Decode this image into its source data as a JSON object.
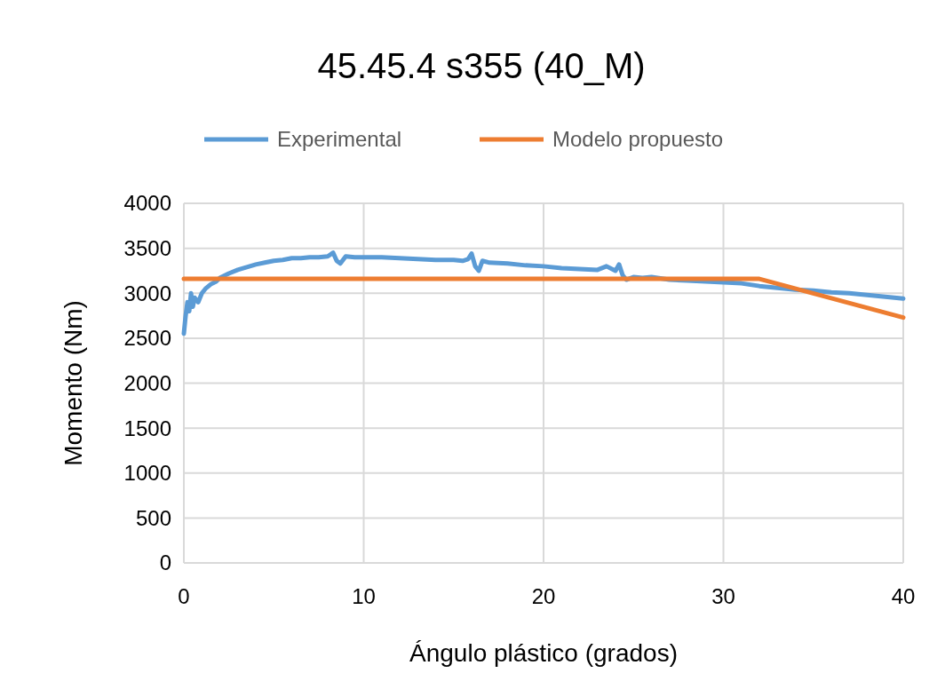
{
  "chart_data": {
    "type": "line",
    "title": "45.45.4 s355 (40_M)",
    "xlabel": "Ángulo plástico (grados)",
    "ylabel": "Momento  (Nm)",
    "xlim": [
      0,
      40
    ],
    "xticks": [
      0,
      10,
      20,
      30,
      40
    ],
    "ylim": [
      0,
      4000
    ],
    "yticks": [
      0,
      500,
      1000,
      1500,
      2000,
      2500,
      3000,
      3500,
      4000
    ],
    "grid": true,
    "legend": "top",
    "line_style": "solid",
    "marker": "none",
    "series": [
      {
        "name": "Experimental",
        "color": "#5b9bd5",
        "x": [
          0,
          0.1,
          0.2,
          0.3,
          0.4,
          0.5,
          0.6,
          0.8,
          1,
          1.2,
          1.5,
          1.8,
          2,
          2.5,
          3,
          3.5,
          4,
          4.5,
          5,
          5.5,
          6,
          6.5,
          7,
          7.5,
          8,
          8.3,
          8.5,
          8.7,
          9,
          9.5,
          10,
          11,
          12,
          13,
          14,
          15,
          15.5,
          15.8,
          16,
          16.2,
          16.4,
          16.6,
          17,
          18,
          19,
          20,
          21,
          22,
          23,
          23.5,
          24,
          24.2,
          24.4,
          24.6,
          25,
          25.5,
          26,
          27,
          28,
          29,
          30,
          31,
          32,
          33,
          34,
          35,
          36,
          37,
          38,
          39,
          40
        ],
        "values": [
          2550,
          2750,
          2900,
          2800,
          3000,
          2850,
          2950,
          2900,
          3000,
          3050,
          3100,
          3130,
          3170,
          3220,
          3260,
          3290,
          3320,
          3340,
          3360,
          3370,
          3390,
          3390,
          3400,
          3400,
          3410,
          3450,
          3360,
          3330,
          3410,
          3400,
          3400,
          3400,
          3390,
          3380,
          3370,
          3370,
          3360,
          3380,
          3440,
          3300,
          3250,
          3360,
          3340,
          3330,
          3310,
          3300,
          3280,
          3270,
          3260,
          3300,
          3250,
          3320,
          3200,
          3150,
          3180,
          3170,
          3180,
          3150,
          3140,
          3130,
          3120,
          3110,
          3080,
          3060,
          3040,
          3030,
          3010,
          3000,
          2980,
          2960,
          2940
        ]
      },
      {
        "name": "Modelo propuesto",
        "color": "#ed7d31",
        "x": [
          0,
          32,
          40
        ],
        "values": [
          3160,
          3160,
          2730
        ]
      }
    ]
  }
}
